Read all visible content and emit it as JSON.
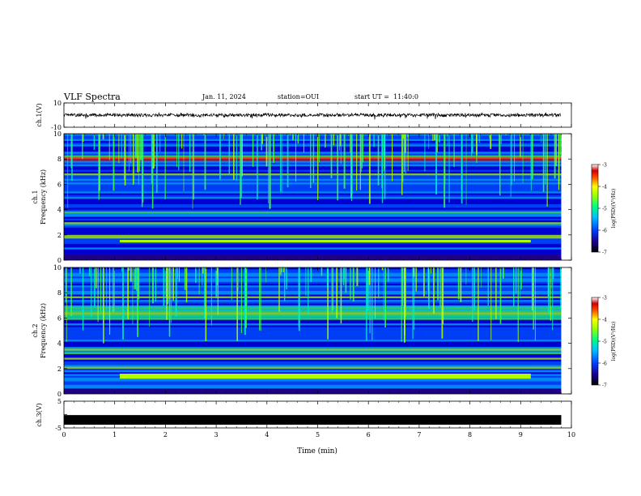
{
  "header": {
    "title": "VLF Spectra",
    "date": "Jan. 11, 2024",
    "station": "station=OUI",
    "start_time": "start UT =  11:40:0"
  },
  "colors": {
    "colormap": [
      "#2a0070",
      "#0000d0",
      "#0050ff",
      "#00b0ff",
      "#00f0c0",
      "#40ff40",
      "#b0ff00",
      "#ffe000",
      "#ff6000",
      "#e00000",
      "#ffffff"
    ],
    "waveform": "#000000"
  },
  "chart_data": [
    {
      "type": "line",
      "panel": "ch1-waveform",
      "ylabel": "ch.1(V)",
      "ylim": [
        -10,
        10
      ],
      "yticks": [
        "10",
        "-10"
      ],
      "xlim": [
        0,
        10
      ],
      "series": [
        {
          "x": [
            0,
            9.8
          ],
          "approx_level": 0,
          "approx_amplitude": 1.5
        }
      ]
    },
    {
      "type": "heatmap",
      "panel": "ch1-spectrogram",
      "ylabel_top": "ch.1",
      "ylabel": "Frequency (kHz)",
      "ylim": [
        0,
        10
      ],
      "yticks": [
        "0",
        "2",
        "4",
        "6",
        "8",
        "10"
      ],
      "xlim": [
        0,
        10
      ],
      "colorbar": {
        "label": "log(PSD)(V²/Hz)",
        "range": [
          -7,
          -3
        ],
        "ticks": [
          "-3",
          "-4",
          "-5",
          "-6",
          "-7"
        ]
      },
      "features": {
        "persistent_band_khz": [
          1.4,
          1.6
        ],
        "time_extent_min": [
          0,
          9.8
        ]
      }
    },
    {
      "type": "heatmap",
      "panel": "ch2-spectrogram",
      "ylabel_top": "ch.2",
      "ylabel": "Frequency (kHz)",
      "ylim": [
        0,
        10
      ],
      "yticks": [
        "0",
        "2",
        "4",
        "6",
        "8",
        "10"
      ],
      "xlim": [
        0,
        10
      ],
      "colorbar": {
        "label": "log(PSD)(V²/Hz)",
        "range": [
          -7,
          -3
        ],
        "ticks": [
          "-3",
          "-4",
          "-5",
          "-6",
          "-7"
        ]
      },
      "features": {
        "enhanced_band_khz": [
          5.8,
          7.0
        ],
        "persistent_band_khz": [
          1.2,
          1.6
        ],
        "time_extent_min": [
          0,
          9.8
        ]
      }
    },
    {
      "type": "line",
      "panel": "ch3-waveform",
      "ylabel": "ch.3(V)",
      "ylim": [
        -5,
        5
      ],
      "yticks": [
        "5",
        "0",
        "-5"
      ],
      "xlim": [
        0,
        10
      ],
      "xlabel": "Time (min)",
      "xticks": [
        "0",
        "1",
        "2",
        "3",
        "4",
        "5",
        "6",
        "7",
        "8",
        "9",
        "10"
      ],
      "series": [
        {
          "x": [
            0,
            9.8
          ],
          "approx_level": -2,
          "approx_amplitude": 0.3
        }
      ]
    }
  ]
}
